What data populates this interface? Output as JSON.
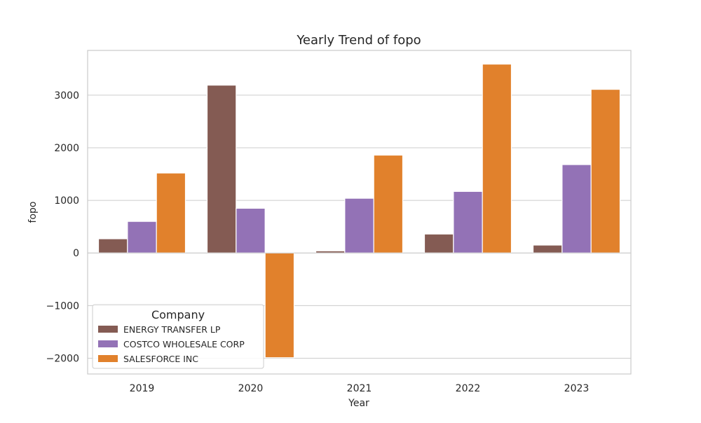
{
  "chart_data": {
    "type": "bar",
    "title": "Yearly Trend of fopo",
    "xlabel": "Year",
    "ylabel": "fopo",
    "categories": [
      "2019",
      "2020",
      "2021",
      "2022",
      "2023"
    ],
    "ylim": [
      -2300,
      3850
    ],
    "yticks": [
      -2000,
      -1000,
      0,
      1000,
      2000,
      3000
    ],
    "ytick_labels": [
      "−2000",
      "−1000",
      "0",
      "1000",
      "2000",
      "3000"
    ],
    "grid": true,
    "legend": {
      "title": "Company",
      "placement": "lower-left"
    },
    "series": [
      {
        "name": "ENERGY TRANSFER LP",
        "color": "#845b53",
        "values": [
          270,
          3190,
          40,
          360,
          150
        ]
      },
      {
        "name": "COSTCO WHOLESALE CORP",
        "color": "#9372b6",
        "values": [
          600,
          850,
          1040,
          1170,
          1680
        ]
      },
      {
        "name": "SALESFORCE INC",
        "color": "#e1812c",
        "values": [
          1520,
          -1990,
          1860,
          3590,
          3110
        ]
      }
    ]
  }
}
